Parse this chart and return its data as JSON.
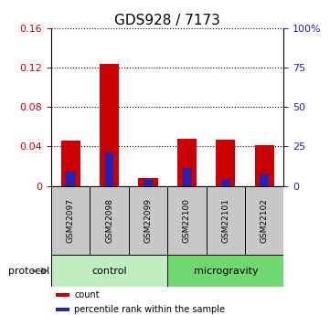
{
  "title": "GDS928 / 7173",
  "samples": [
    "GSM22097",
    "GSM22098",
    "GSM22099",
    "GSM22100",
    "GSM22101",
    "GSM22102"
  ],
  "red_values": [
    0.046,
    0.124,
    0.008,
    0.048,
    0.047,
    0.041
  ],
  "blue_values": [
    0.014,
    0.034,
    0.006,
    0.018,
    0.006,
    0.012
  ],
  "ylim_left": [
    0,
    0.16
  ],
  "ylim_right": [
    0,
    100
  ],
  "yticks_left": [
    0,
    0.04,
    0.08,
    0.12,
    0.16
  ],
  "ytick_labels_left": [
    "0",
    "0.04",
    "0.08",
    "0.12",
    "0.16"
  ],
  "yticks_right": [
    0,
    25,
    50,
    75,
    100
  ],
  "ytick_labels_right": [
    "0",
    "25",
    "50",
    "75",
    "100%"
  ],
  "groups": [
    {
      "label": "control",
      "start": 0,
      "end": 3,
      "color": "#c0eec0"
    },
    {
      "label": "microgravity",
      "start": 3,
      "end": 6,
      "color": "#70d870"
    }
  ],
  "protocol_label": "protocol",
  "legend_items": [
    {
      "color": "#cc0000",
      "label": "count"
    },
    {
      "color": "#2222bb",
      "label": "percentile rank within the sample"
    }
  ],
  "red_color": "#cc0000",
  "blue_color": "#2222bb",
  "title_fontsize": 11,
  "tick_label_color_left": "#cc0000",
  "tick_label_color_right": "#2222bb",
  "sample_box_color": "#c8c8c8"
}
